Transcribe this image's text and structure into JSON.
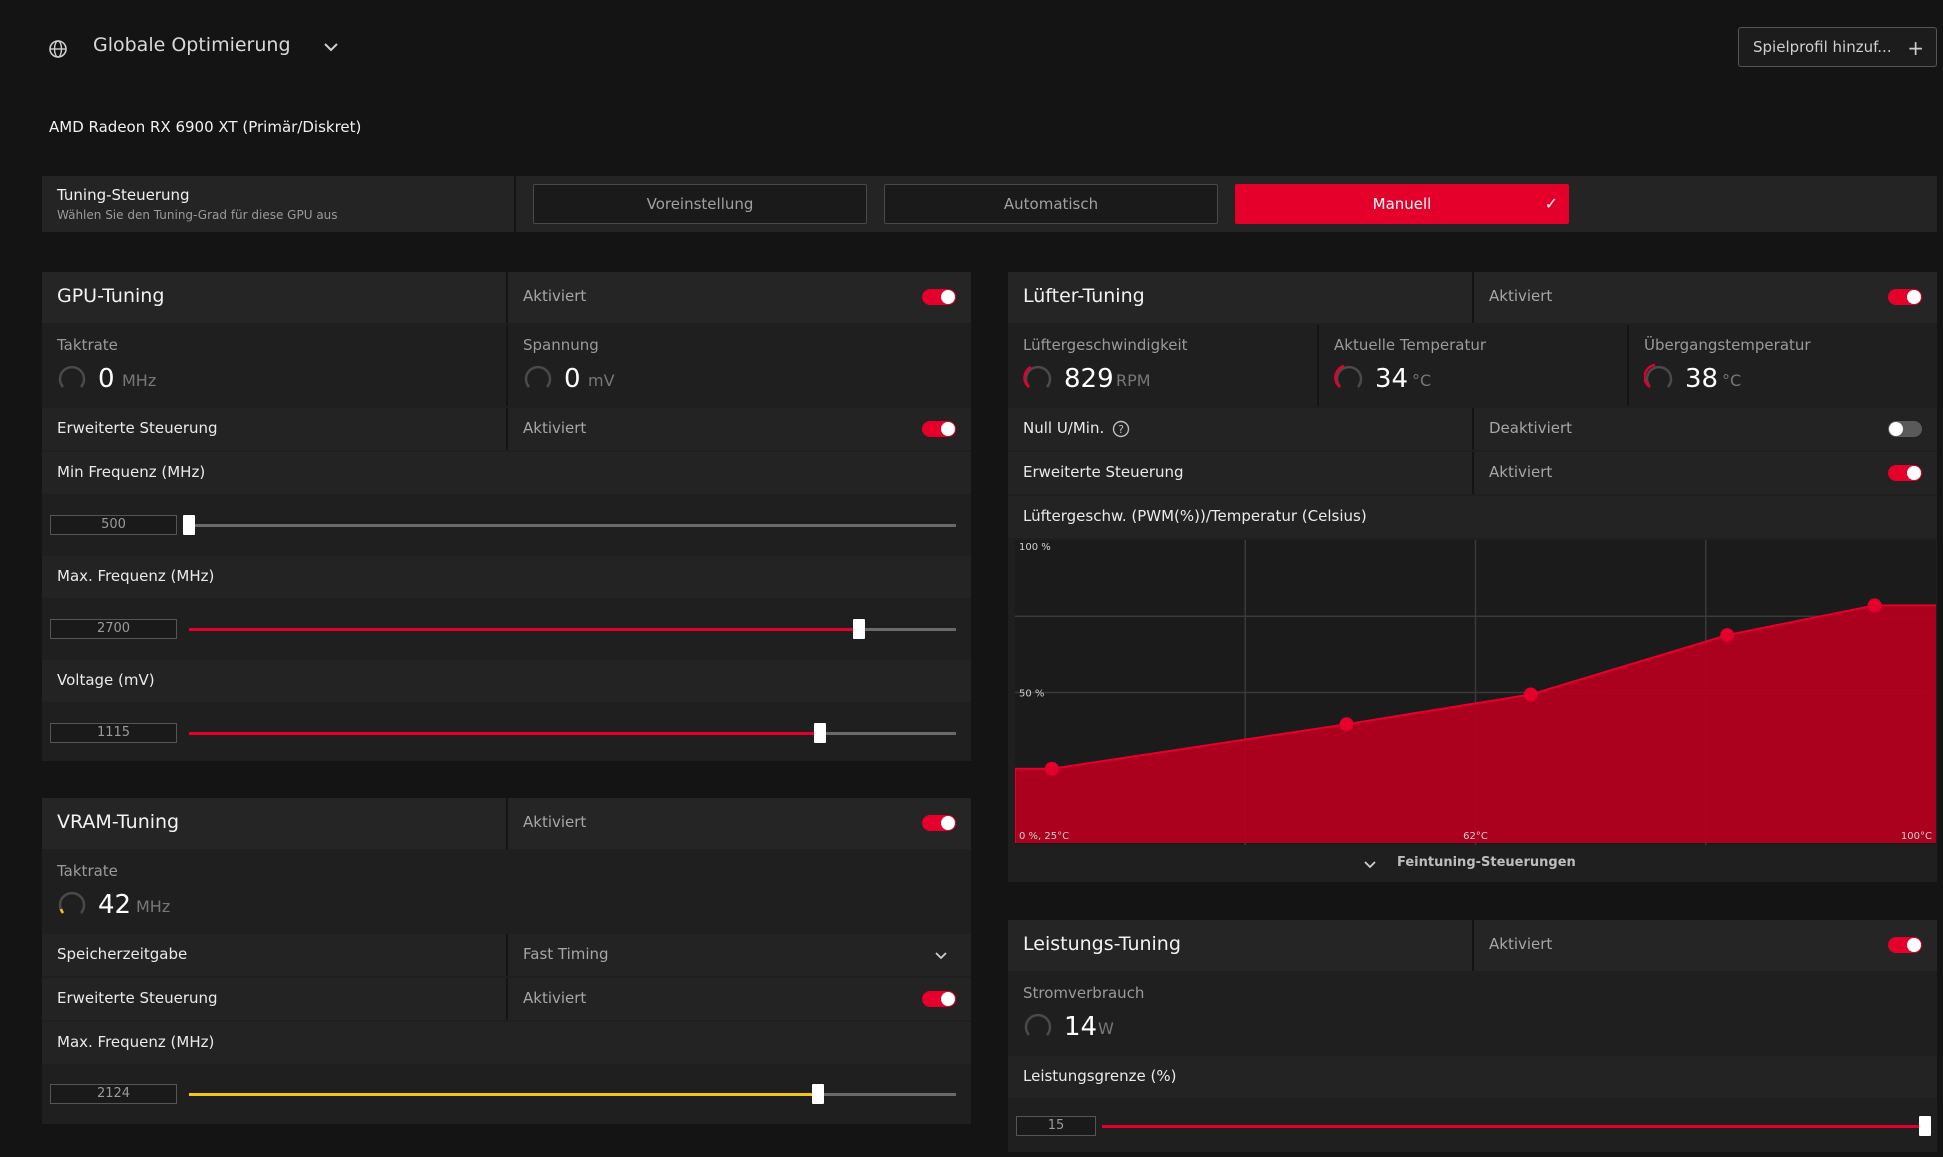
{
  "header": {
    "profile_title": "Globale Optimierung",
    "add_profile_label": "Spielprofil hinzuf...",
    "add_profile_icon": "plus-icon",
    "gpu_name": "AMD Radeon RX 6900 XT (Primär/Diskret)"
  },
  "tuning_control": {
    "title": "Tuning-Steuerung",
    "subtitle": "Wählen Sie den Tuning-Grad für diese GPU aus",
    "options": [
      "Voreinstellung",
      "Automatisch",
      "Manuell"
    ],
    "selected": "Manuell"
  },
  "gpu_tuning": {
    "title": "GPU-Tuning",
    "status": "Aktiviert",
    "enabled": true,
    "clock_label": "Taktrate",
    "clock_value": "0",
    "clock_unit": "MHz",
    "voltage_label": "Spannung",
    "voltage_value": "0",
    "voltage_unit": "mV",
    "advanced_label": "Erweiterte Steuerung",
    "advanced_status": "Aktiviert",
    "advanced_enabled": true,
    "min_freq_label": "Min Frequenz (MHz)",
    "min_freq_value": "500",
    "min_freq_fraction": 0.0,
    "max_freq_label": "Max. Frequenz (MHz)",
    "max_freq_value": "2700",
    "max_freq_fraction": 0.874,
    "voltage_ctrl_label": "Voltage (mV)",
    "voltage_ctrl_value": "1115",
    "voltage_ctrl_fraction": 0.823
  },
  "vram_tuning": {
    "title": "VRAM-Tuning",
    "status": "Aktiviert",
    "enabled": true,
    "clock_label": "Taktrate",
    "clock_value": "42",
    "clock_unit": "MHz",
    "timing_label": "Speicherzeitgabe",
    "timing_value": "Fast Timing",
    "advanced_label": "Erweiterte Steuerung",
    "advanced_status": "Aktiviert",
    "advanced_enabled": true,
    "max_freq_label": "Max. Frequenz (MHz)",
    "max_freq_value": "2124",
    "max_freq_fraction": 0.82
  },
  "fan_tuning": {
    "title": "Lüfter-Tuning",
    "status": "Aktiviert",
    "enabled": true,
    "fan_speed_label": "Lüftergeschwindigkeit",
    "fan_speed_value": "829",
    "fan_speed_unit": "RPM",
    "temp_label": "Aktuelle Temperatur",
    "temp_value": "34",
    "temp_unit": "°C",
    "junction_label": "Übergangstemperatur",
    "junction_value": "38",
    "junction_unit": "°C",
    "zero_rpm_label": "Null U/Min.",
    "zero_rpm_status": "Deaktiviert",
    "zero_rpm_enabled": false,
    "advanced_label": "Erweiterte Steuerung",
    "advanced_status": "Aktiviert",
    "advanced_enabled": true,
    "curve_title": "Lüftergeschw. (PWM(%))/Temperatur (Celsius)",
    "fine_tune_label": "Feintuning-Steuerungen",
    "accent": "#e4002b"
  },
  "power_tuning": {
    "title": "Leistungs-Tuning",
    "status": "Aktiviert",
    "enabled": true,
    "power_label": "Stromverbrauch",
    "power_value": "14",
    "power_unit": "W",
    "limit_label": "Leistungsgrenze (%)",
    "limit_value": "15",
    "limit_fraction": 1.0
  },
  "chart_data": {
    "type": "area",
    "title": "",
    "xlabel": "",
    "ylabel": "",
    "x_tick_labels": [
      "0 %, 25°C",
      "62°C",
      "100°C"
    ],
    "y_tick_labels": [
      "100 %",
      "50 %"
    ],
    "xlim": [
      25,
      100
    ],
    "ylim": [
      0,
      100
    ],
    "grid": true,
    "series": [
      {
        "x": [
          28,
          52,
          67,
          83,
          95
        ],
        "y": [
          25,
          40,
          50,
          70,
          80
        ]
      }
    ]
  }
}
